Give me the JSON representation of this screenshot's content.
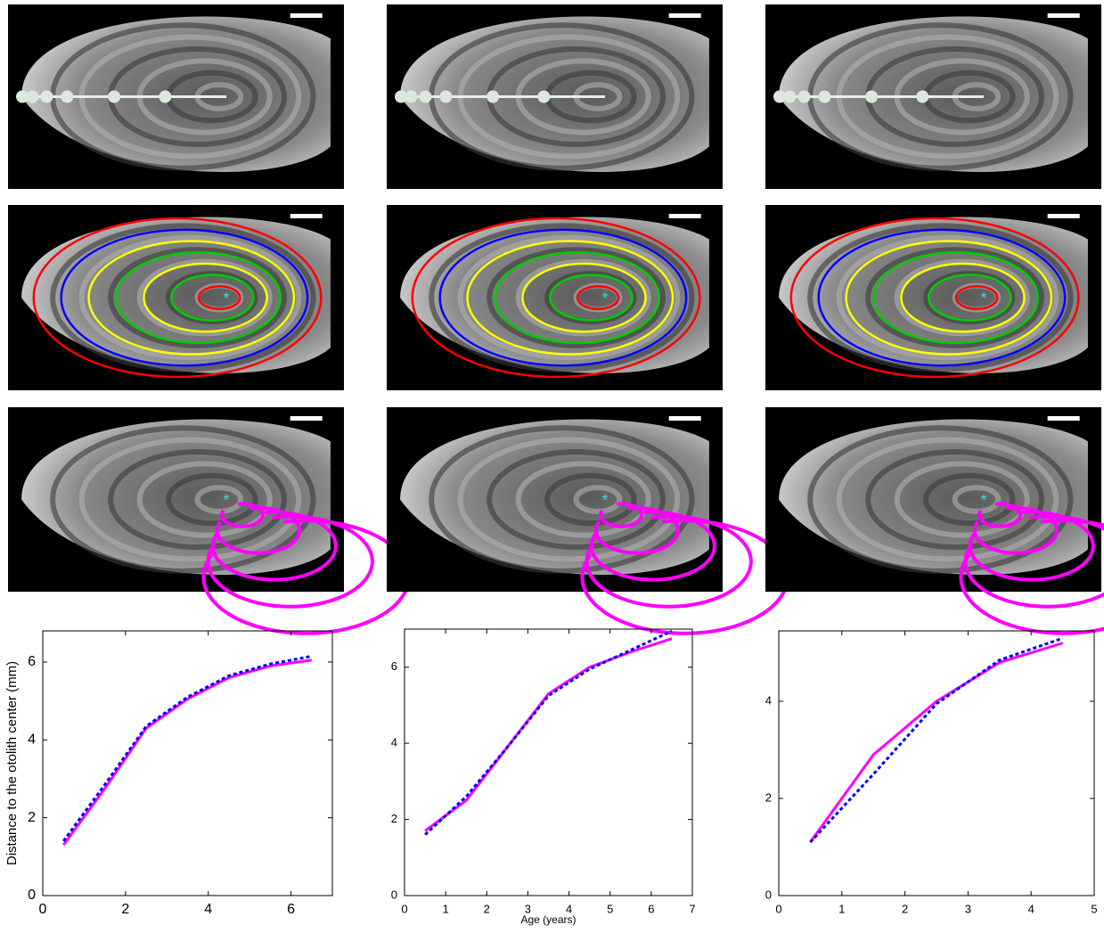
{
  "chart_data": [
    {
      "type": "line",
      "ylabel": "Distance to the otolith center (mm)",
      "x": [
        0.5,
        1.5,
        2.5,
        3.5,
        4.5,
        5.5,
        6.5
      ],
      "series": [
        {
          "color": "#ff00ff",
          "linestyle": "solid",
          "values": [
            1.3,
            2.75,
            4.3,
            5.05,
            5.6,
            5.9,
            6.05
          ]
        },
        {
          "color": "#0000ff",
          "linestyle": "dashed",
          "values": [
            1.4,
            2.85,
            4.35,
            5.1,
            5.65,
            5.95,
            6.15
          ]
        }
      ],
      "xlim": [
        0,
        7
      ],
      "xticks": [
        0,
        2,
        4,
        6
      ],
      "ylim": [
        0,
        6.8
      ],
      "yticks": [
        0,
        2,
        4,
        6
      ]
    },
    {
      "type": "line",
      "xlabel": "Age (years)",
      "x": [
        0.5,
        1.5,
        2.5,
        3.5,
        4.5,
        5.5,
        6.5
      ],
      "series": [
        {
          "color": "#ff00ff",
          "linestyle": "solid",
          "values": [
            1.7,
            2.5,
            3.9,
            5.3,
            6.0,
            6.4,
            6.75
          ]
        },
        {
          "color": "#0000ff",
          "linestyle": "dashed",
          "values": [
            1.6,
            2.6,
            3.9,
            5.25,
            5.95,
            6.45,
            6.95
          ]
        }
      ],
      "xlim": [
        0,
        7
      ],
      "xticks": [
        0,
        1,
        2,
        3,
        4,
        5,
        6,
        7
      ],
      "ylim": [
        0,
        7
      ],
      "yticks": [
        0,
        2,
        4,
        6
      ]
    },
    {
      "type": "line",
      "x": [
        0.5,
        1.5,
        2.5,
        3.5,
        4.5
      ],
      "series": [
        {
          "color": "#ff00ff",
          "linestyle": "solid",
          "values": [
            1.1,
            2.9,
            4.0,
            4.8,
            5.2
          ]
        },
        {
          "color": "#0000ff",
          "linestyle": "dashed",
          "values": [
            1.1,
            2.5,
            3.95,
            4.85,
            5.3
          ]
        }
      ],
      "xlim": [
        0,
        5
      ],
      "xticks": [
        0,
        1,
        2,
        3,
        4,
        5
      ],
      "ylim": [
        0,
        5.45
      ],
      "yticks": [
        0,
        2,
        4
      ]
    }
  ]
}
